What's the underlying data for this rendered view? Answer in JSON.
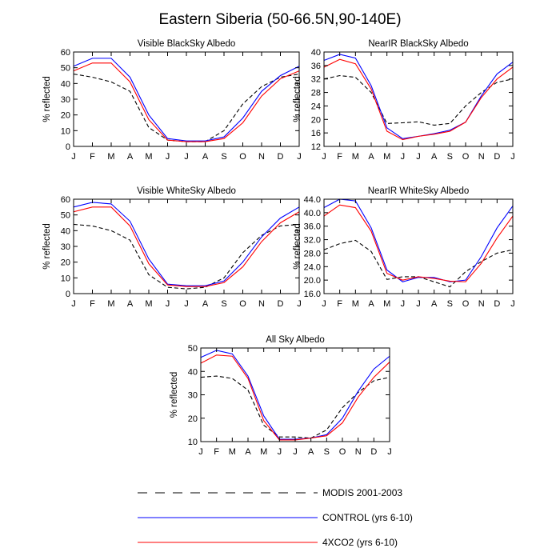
{
  "title": "Eastern Siberia (50-66.5N,90-140E)",
  "colors": {
    "modis": "#000000",
    "control": "#0000ff",
    "x4co2": "#ff0000"
  },
  "legend": [
    {
      "key": "modis",
      "label": "MODIS 2001-2003",
      "style": "dashed"
    },
    {
      "key": "control",
      "label": "CONTROL (yrs 6-10)",
      "style": "solid"
    },
    {
      "key": "x4co2",
      "label": "4XCO2 (yrs 6-10)",
      "style": "solid"
    }
  ],
  "chart_data": [
    {
      "type": "line",
      "title": "Visible BlackSky Albedo",
      "xlabel": "",
      "ylabel": "% reflected",
      "categories": [
        "J",
        "F",
        "M",
        "A",
        "M",
        "J",
        "J",
        "A",
        "S",
        "O",
        "N",
        "D",
        "J"
      ],
      "ylim": [
        0,
        60
      ],
      "yticks": [
        0,
        10,
        20,
        30,
        40,
        50,
        60
      ],
      "ytick_labels": [
        "0",
        "10",
        "20",
        "30",
        "40",
        "50",
        "60"
      ],
      "series": [
        {
          "name": "MODIS 2001-2003",
          "key": "modis",
          "values": [
            46,
            44,
            41,
            35,
            12,
            4,
            3,
            3,
            10,
            27,
            38,
            44,
            46
          ]
        },
        {
          "name": "CONTROL (yrs 6-10)",
          "key": "control",
          "values": [
            51,
            56,
            56,
            44,
            20,
            5,
            3.5,
            3.5,
            6,
            18,
            35,
            45,
            51
          ]
        },
        {
          "name": "4XCO2 (yrs 6-10)",
          "key": "x4co2",
          "values": [
            48,
            53,
            53,
            41,
            17,
            4,
            3,
            3,
            5,
            15,
            32,
            43,
            48
          ]
        }
      ]
    },
    {
      "type": "line",
      "title": "NearIR BlackSky Albedo",
      "xlabel": "",
      "ylabel": "% reflected",
      "categories": [
        "J",
        "F",
        "M",
        "A",
        "M",
        "J",
        "J",
        "A",
        "S",
        "O",
        "N",
        "D",
        "J"
      ],
      "ylim": [
        12,
        40
      ],
      "yticks": [
        12,
        16,
        20,
        24,
        28,
        32,
        36,
        40
      ],
      "ytick_labels": [
        "12",
        "16",
        "20",
        "24",
        "28",
        "32",
        "36",
        "40"
      ],
      "series": [
        {
          "name": "MODIS 2001-2003",
          "key": "modis",
          "values": [
            32,
            33,
            32.5,
            28,
            18.8,
            19,
            19.3,
            18.3,
            18.8,
            24,
            28,
            31,
            32
          ]
        },
        {
          "name": "CONTROL (yrs 6-10)",
          "key": "control",
          "values": [
            37.5,
            39.3,
            38.2,
            30,
            17.5,
            14.3,
            15,
            15.8,
            16.8,
            19.2,
            27,
            33.5,
            37
          ]
        },
        {
          "name": "4XCO2 (yrs 6-10)",
          "key": "x4co2",
          "values": [
            35.5,
            37.8,
            36.5,
            29,
            16.5,
            14,
            15,
            15.6,
            16.5,
            19.2,
            26.5,
            32,
            35.5
          ]
        }
      ]
    },
    {
      "type": "line",
      "title": "Visible WhiteSky Albedo",
      "xlabel": "",
      "ylabel": "% reflected",
      "categories": [
        "J",
        "F",
        "M",
        "A",
        "M",
        "J",
        "J",
        "A",
        "S",
        "O",
        "N",
        "D",
        "J"
      ],
      "ylim": [
        0,
        60
      ],
      "yticks": [
        0,
        10,
        20,
        30,
        40,
        50,
        60
      ],
      "ytick_labels": [
        "0",
        "10",
        "20",
        "30",
        "40",
        "50",
        "60"
      ],
      "series": [
        {
          "name": "MODIS 2001-2003",
          "key": "modis",
          "values": [
            44,
            43,
            40,
            34,
            12,
            4,
            3,
            4,
            10,
            26,
            37,
            43,
            44
          ]
        },
        {
          "name": "CONTROL (yrs 6-10)",
          "key": "control",
          "values": [
            55,
            58,
            57,
            46,
            22,
            6,
            5,
            5,
            8,
            20,
            36,
            48,
            55
          ]
        },
        {
          "name": "4XCO2 (yrs 6-10)",
          "key": "x4co2",
          "values": [
            52,
            55,
            55,
            43,
            19,
            5.5,
            4.5,
            4.5,
            7,
            17,
            33,
            45,
            52
          ]
        }
      ]
    },
    {
      "type": "line",
      "title": "NearIR WhiteSky Albedo",
      "xlabel": "",
      "ylabel": "% reflected",
      "categories": [
        "J",
        "F",
        "M",
        "A",
        "M",
        "J",
        "J",
        "A",
        "S",
        "O",
        "N",
        "D",
        "J"
      ],
      "ylim": [
        16,
        44
      ],
      "yticks": [
        16,
        20,
        24,
        28,
        32,
        36,
        40,
        44
      ],
      "ytick_labels": [
        "16.0",
        "20.0",
        "24.0",
        "28.0",
        "32.0",
        "36.0",
        "40.0",
        "44.0"
      ],
      "series": [
        {
          "name": "MODIS 2001-2003",
          "key": "modis",
          "values": [
            29,
            30.8,
            31.8,
            28.5,
            20.2,
            21,
            21,
            19.5,
            18,
            22.5,
            25.5,
            28,
            29
          ]
        },
        {
          "name": "CONTROL (yrs 6-10)",
          "key": "control",
          "values": [
            41.5,
            44,
            43.5,
            35.5,
            23,
            19.5,
            20.8,
            20.8,
            19.5,
            20,
            27,
            35.5,
            42
          ]
        },
        {
          "name": "4XCO2 (yrs 6-10)",
          "key": "x4co2",
          "values": [
            39,
            42.3,
            41.5,
            34.5,
            22,
            20,
            21,
            20.5,
            19.7,
            19.5,
            25,
            32.5,
            39
          ]
        }
      ]
    },
    {
      "type": "line",
      "title": "All Sky Albedo",
      "xlabel": "",
      "ylabel": "% reflected",
      "categories": [
        "J",
        "F",
        "M",
        "A",
        "M",
        "J",
        "J",
        "A",
        "S",
        "O",
        "N",
        "D",
        "J"
      ],
      "ylim": [
        10,
        50
      ],
      "yticks": [
        10,
        20,
        30,
        40,
        50
      ],
      "ytick_labels": [
        "10",
        "20",
        "30",
        "40",
        "50"
      ],
      "series": [
        {
          "name": "MODIS 2001-2003",
          "key": "modis",
          "values": [
            37.5,
            38,
            37,
            32,
            17,
            12,
            12,
            11.5,
            15,
            24.5,
            31,
            36,
            37.5
          ]
        },
        {
          "name": "CONTROL (yrs 6-10)",
          "key": "control",
          "values": [
            46,
            49,
            47.5,
            38,
            21,
            11,
            11,
            11.5,
            13,
            20,
            31.5,
            41,
            46.5
          ]
        },
        {
          "name": "4XCO2 (yrs 6-10)",
          "key": "x4co2",
          "values": [
            43.5,
            47,
            46.5,
            37,
            19,
            10.7,
            10.7,
            11.5,
            12.5,
            18,
            29,
            37.5,
            44
          ]
        }
      ]
    }
  ]
}
